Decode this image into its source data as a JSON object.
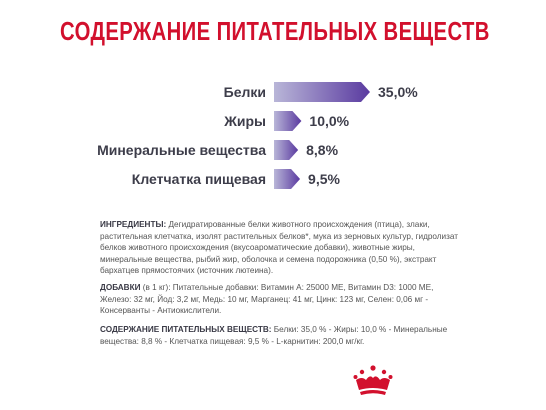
{
  "title": "СОДЕРЖАНИЕ ПИТАТЕЛЬНЫХ ВЕЩЕСТВ",
  "chart_data": {
    "type": "bar",
    "orientation": "horizontal",
    "categories": [
      "Белки",
      "Жиры",
      "Минеральные вещества",
      "Клетчатка пищевая"
    ],
    "values": [
      35.0,
      10.0,
      8.8,
      9.5
    ],
    "value_labels": [
      "35,0%",
      "10,0%",
      "8,8%",
      "9,5%"
    ],
    "unit": "%",
    "colors": {
      "bar_start": "#b9b6d8",
      "bar_end": "#5a3aa0"
    }
  },
  "ingredients": {
    "label": "ИНГРЕДИЕНТЫ:",
    "text": "Дегидратированные белки животного происхождения (птица), злаки, растительная клетчатка, изолят растительных белков*, мука из зерновых культур, гидролизат белков животного происхождения (вкусоароматические добавки), животные жиры, минеральные вещества, рыбий жир, оболочка и семена подорожника (0,50 %), экстракт бархатцев прямостоячих (источник лютеина)."
  },
  "additives": {
    "label": "ДОБАВКИ",
    "text": " (в 1 кг): Питательные добавки: Витамин A: 25000 МЕ, Витамин D3: 1000 МЕ, Железо: 32 мг, Йод: 3,2 мг, Медь: 10 мг, Марганец: 41 мг, Цинк: 123 мг, Селен: 0,06 мг - Консерванты - Антиокислители."
  },
  "nutrients": {
    "label": "СОДЕРЖАНИЕ ПИТАТЕЛЬНЫХ ВЕЩЕСТВ:",
    "text": " Белки: 35,0 % - Жиры: 10,0 % - Минеральные вещества: 8,8 % - Клетчатка пищевая: 9,5 % - L-карнитин: 200,0 мг/кг."
  },
  "logo": {
    "icon": "crown-icon",
    "color": "#d2102d"
  }
}
